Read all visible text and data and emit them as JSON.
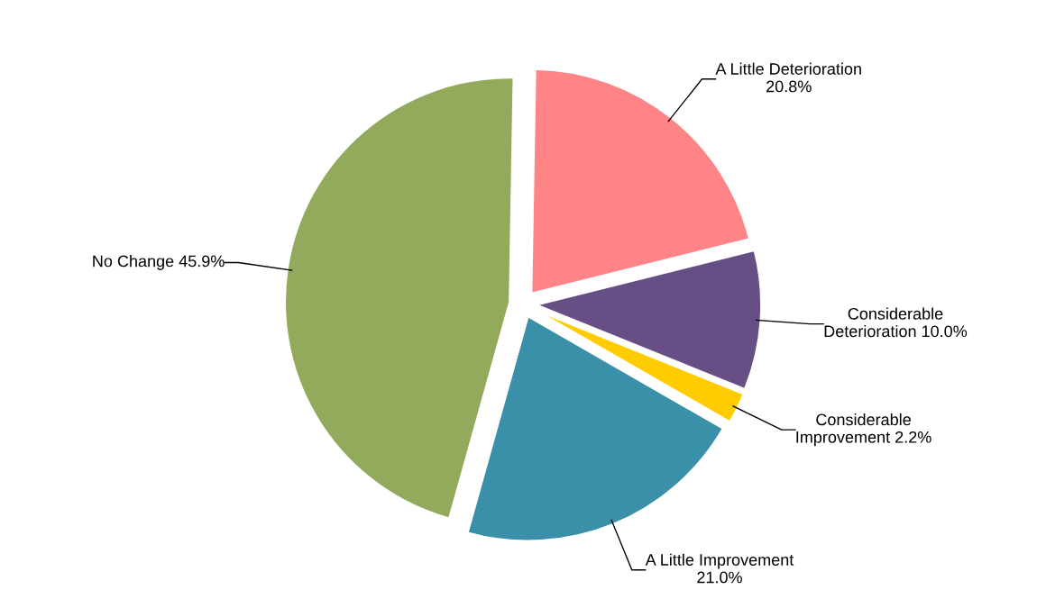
{
  "chart_data": {
    "type": "pie",
    "categories": [
      "A Little Deterioration",
      "Considerable\nDeterioration",
      "Considerable\nImprovement",
      "A Little Improvement",
      "No Change"
    ],
    "values": [
      20.8,
      10.0,
      2.2,
      21.0,
      45.9
    ],
    "value_labels": [
      "20.8%",
      "10.0%",
      "2.2%",
      "21.0%",
      "45.9%"
    ],
    "colors": [
      "#ff8486",
      "#674f86",
      "#ffcc00",
      "#3a8fa9",
      "#93aa5c"
    ],
    "legend": false
  }
}
